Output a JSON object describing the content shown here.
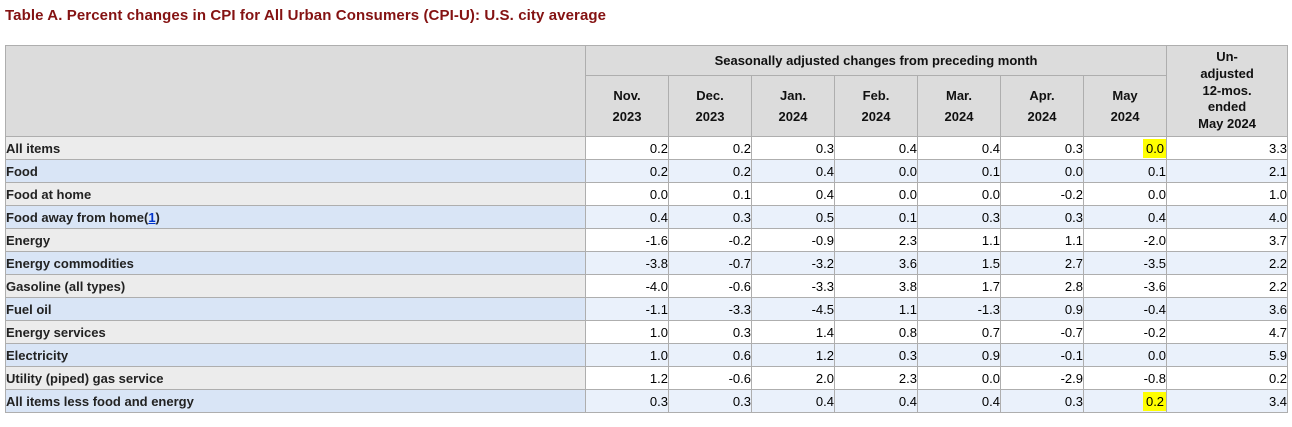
{
  "title": "Table A. Percent changes in CPI for All Urban Consumers (CPI-U): U.S. city average",
  "table": {
    "group_header": "Seasonally adjusted changes from preceding month",
    "unadjusted_header": "Un-\nadjusted\n12-mos.\nended\nMay 2024",
    "columns": [
      "Nov.\n2023",
      "Dec.\n2023",
      "Jan.\n2024",
      "Feb.\n2024",
      "Mar.\n2024",
      "Apr.\n2024",
      "May\n2024"
    ],
    "rows": [
      {
        "label": "All items",
        "indent": 0,
        "values": [
          "0.2",
          "0.2",
          "0.3",
          "0.4",
          "0.4",
          "0.3",
          "0.0",
          "3.3"
        ],
        "highlight_col": 6
      },
      {
        "label": "Food",
        "indent": 1,
        "values": [
          "0.2",
          "0.2",
          "0.4",
          "0.0",
          "0.1",
          "0.0",
          "0.1",
          "2.1"
        ]
      },
      {
        "label": "Food at home",
        "indent": 2,
        "values": [
          "0.0",
          "0.1",
          "0.4",
          "0.0",
          "0.0",
          "-0.2",
          "0.0",
          "1.0"
        ]
      },
      {
        "label": "Food away from home",
        "footnote": "1",
        "indent": 2,
        "values": [
          "0.4",
          "0.3",
          "0.5",
          "0.1",
          "0.3",
          "0.3",
          "0.4",
          "4.0"
        ]
      },
      {
        "label": "Energy",
        "indent": 1,
        "values": [
          "-1.6",
          "-0.2",
          "-0.9",
          "2.3",
          "1.1",
          "1.1",
          "-2.0",
          "3.7"
        ]
      },
      {
        "label": "Energy commodities",
        "indent": 2,
        "values": [
          "-3.8",
          "-0.7",
          "-3.2",
          "3.6",
          "1.5",
          "2.7",
          "-3.5",
          "2.2"
        ]
      },
      {
        "label": "Gasoline (all types)",
        "indent": 3,
        "values": [
          "-4.0",
          "-0.6",
          "-3.3",
          "3.8",
          "1.7",
          "2.8",
          "-3.6",
          "2.2"
        ]
      },
      {
        "label": "Fuel oil",
        "indent": 3,
        "values": [
          "-1.1",
          "-3.3",
          "-4.5",
          "1.1",
          "-1.3",
          "0.9",
          "-0.4",
          "3.6"
        ]
      },
      {
        "label": "Energy services",
        "indent": 2,
        "values": [
          "1.0",
          "0.3",
          "1.4",
          "0.8",
          "0.7",
          "-0.7",
          "-0.2",
          "4.7"
        ]
      },
      {
        "label": "Electricity",
        "indent": 3,
        "values": [
          "1.0",
          "0.6",
          "1.2",
          "0.3",
          "0.9",
          "-0.1",
          "0.0",
          "5.9"
        ]
      },
      {
        "label": "Utility (piped) gas service",
        "indent": 3,
        "values": [
          "1.2",
          "-0.6",
          "2.0",
          "2.3",
          "0.0",
          "-2.9",
          "-0.8",
          "0.2"
        ]
      },
      {
        "label": "All items less food and energy",
        "indent": 1,
        "values": [
          "0.3",
          "0.3",
          "0.4",
          "0.4",
          "0.4",
          "0.3",
          "0.2",
          "3.4"
        ],
        "highlight_col": 6
      }
    ]
  },
  "theme": {
    "title_color": "#841212",
    "header_bg": "#dcdcdc",
    "stub_grey": "#ececec",
    "stub_blue": "#d9e5f6",
    "cell_blue": "#eaf1fb",
    "highlight_yellow": "#ffff00",
    "footnote_link_blue": "#0033cc"
  }
}
